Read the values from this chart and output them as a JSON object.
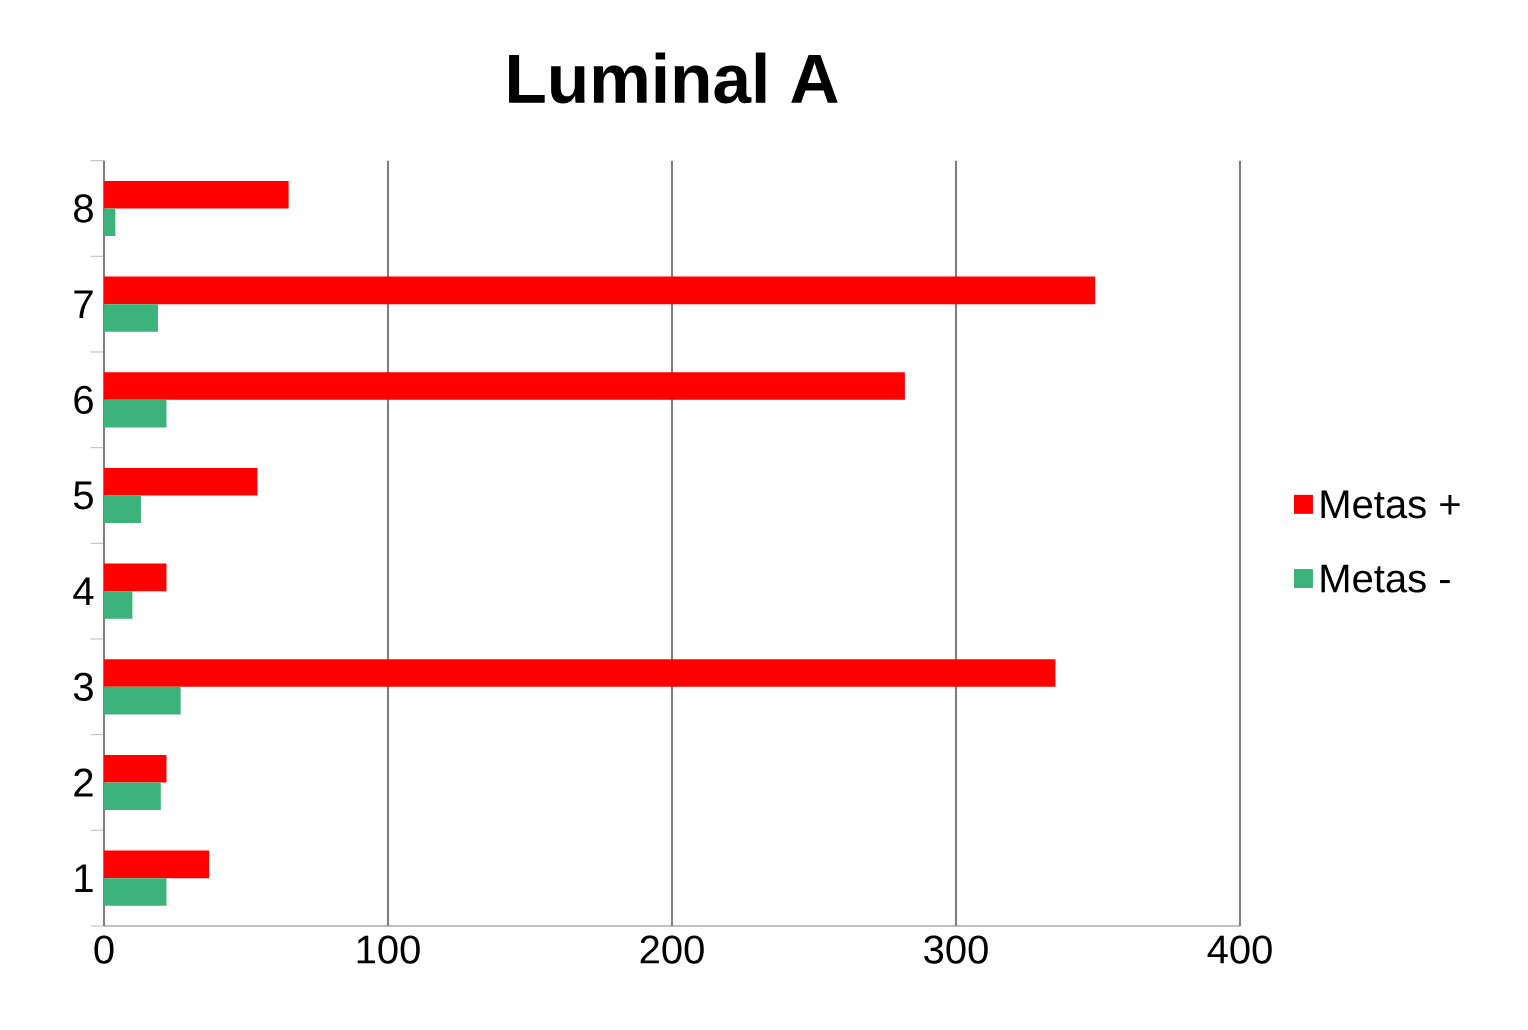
{
  "chart_data": {
    "type": "bar",
    "orientation": "horizontal",
    "title": "Luminal A",
    "categories": [
      "8",
      "7",
      "6",
      "5",
      "4",
      "3",
      "2",
      "1"
    ],
    "series": [
      {
        "name": "Metas +",
        "color": "#ff0000",
        "values": [
          65,
          349,
          282,
          54,
          22,
          335,
          22,
          37
        ]
      },
      {
        "name": "Metas -",
        "color": "#3cb37a",
        "values": [
          4,
          19,
          22,
          13,
          10,
          27,
          20,
          22
        ]
      }
    ],
    "xlim": [
      0,
      400
    ],
    "xticks": [
      0,
      100,
      200,
      300,
      400
    ],
    "grid": "x",
    "legend": "right"
  }
}
